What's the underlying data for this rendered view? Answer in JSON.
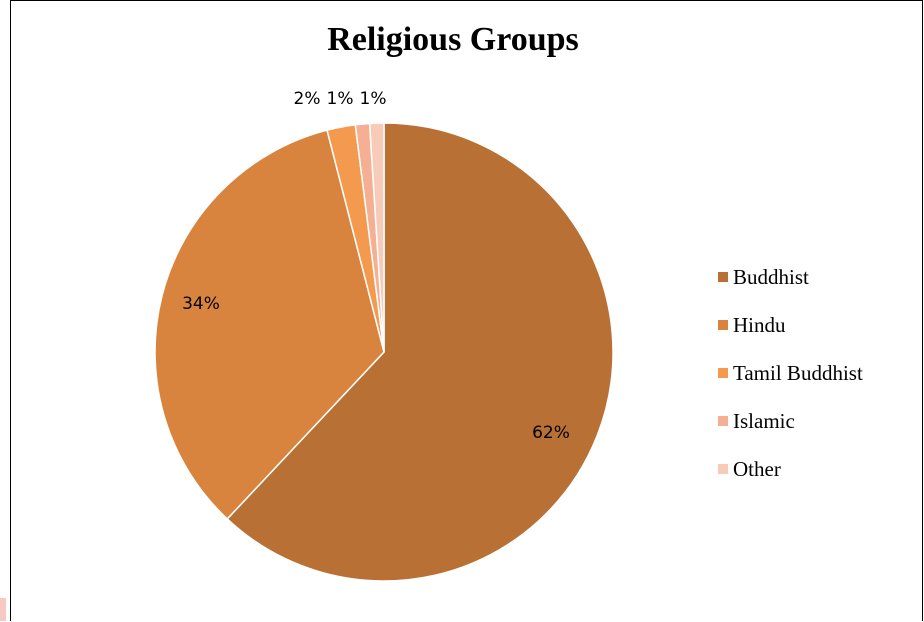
{
  "chart_data": {
    "type": "pie",
    "title": "Religious Groups",
    "categories": [
      "Buddhist",
      "Hindu",
      "Tamil Buddhist",
      "Islamic",
      "Other"
    ],
    "values": [
      62,
      34,
      2,
      1,
      1
    ],
    "data_labels": [
      "62%",
      "34%",
      "2%",
      "1%",
      "1%"
    ],
    "colors": [
      "#b87035",
      "#d9843e",
      "#f49a4f",
      "#f5b094",
      "#f8cbb8"
    ],
    "legend_position": "right"
  }
}
